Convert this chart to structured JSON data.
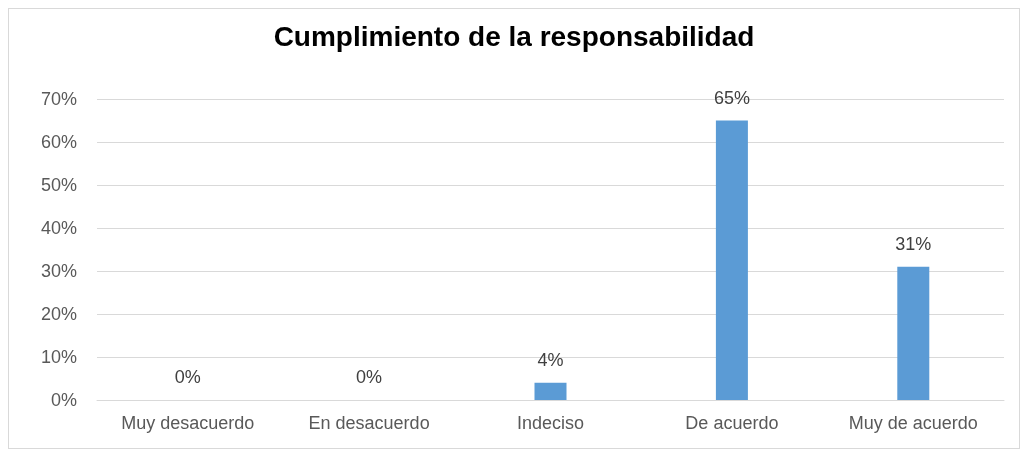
{
  "chart_data": {
    "type": "bar",
    "title": "Cumplimiento de la responsabilidad",
    "categories": [
      "Muy desacuerdo",
      "En desacuerdo",
      "Indeciso",
      "De acuerdo",
      "Muy de acuerdo"
    ],
    "values": [
      0,
      0,
      4,
      65,
      31
    ],
    "value_labels": [
      "0%",
      "0%",
      "4%",
      "65%",
      "31%"
    ],
    "color": "#5b9bd5",
    "ylim": [
      0,
      70
    ],
    "yticks": [
      {
        "value": 0,
        "label": "0%"
      },
      {
        "value": 10,
        "label": "10%"
      },
      {
        "value": 20,
        "label": "20%"
      },
      {
        "value": 30,
        "label": "30%"
      },
      {
        "value": 40,
        "label": "40%"
      },
      {
        "value": 50,
        "label": "50%"
      },
      {
        "value": 60,
        "label": "60%"
      },
      {
        "value": 70,
        "label": "70%"
      }
    ],
    "grid": "y"
  }
}
